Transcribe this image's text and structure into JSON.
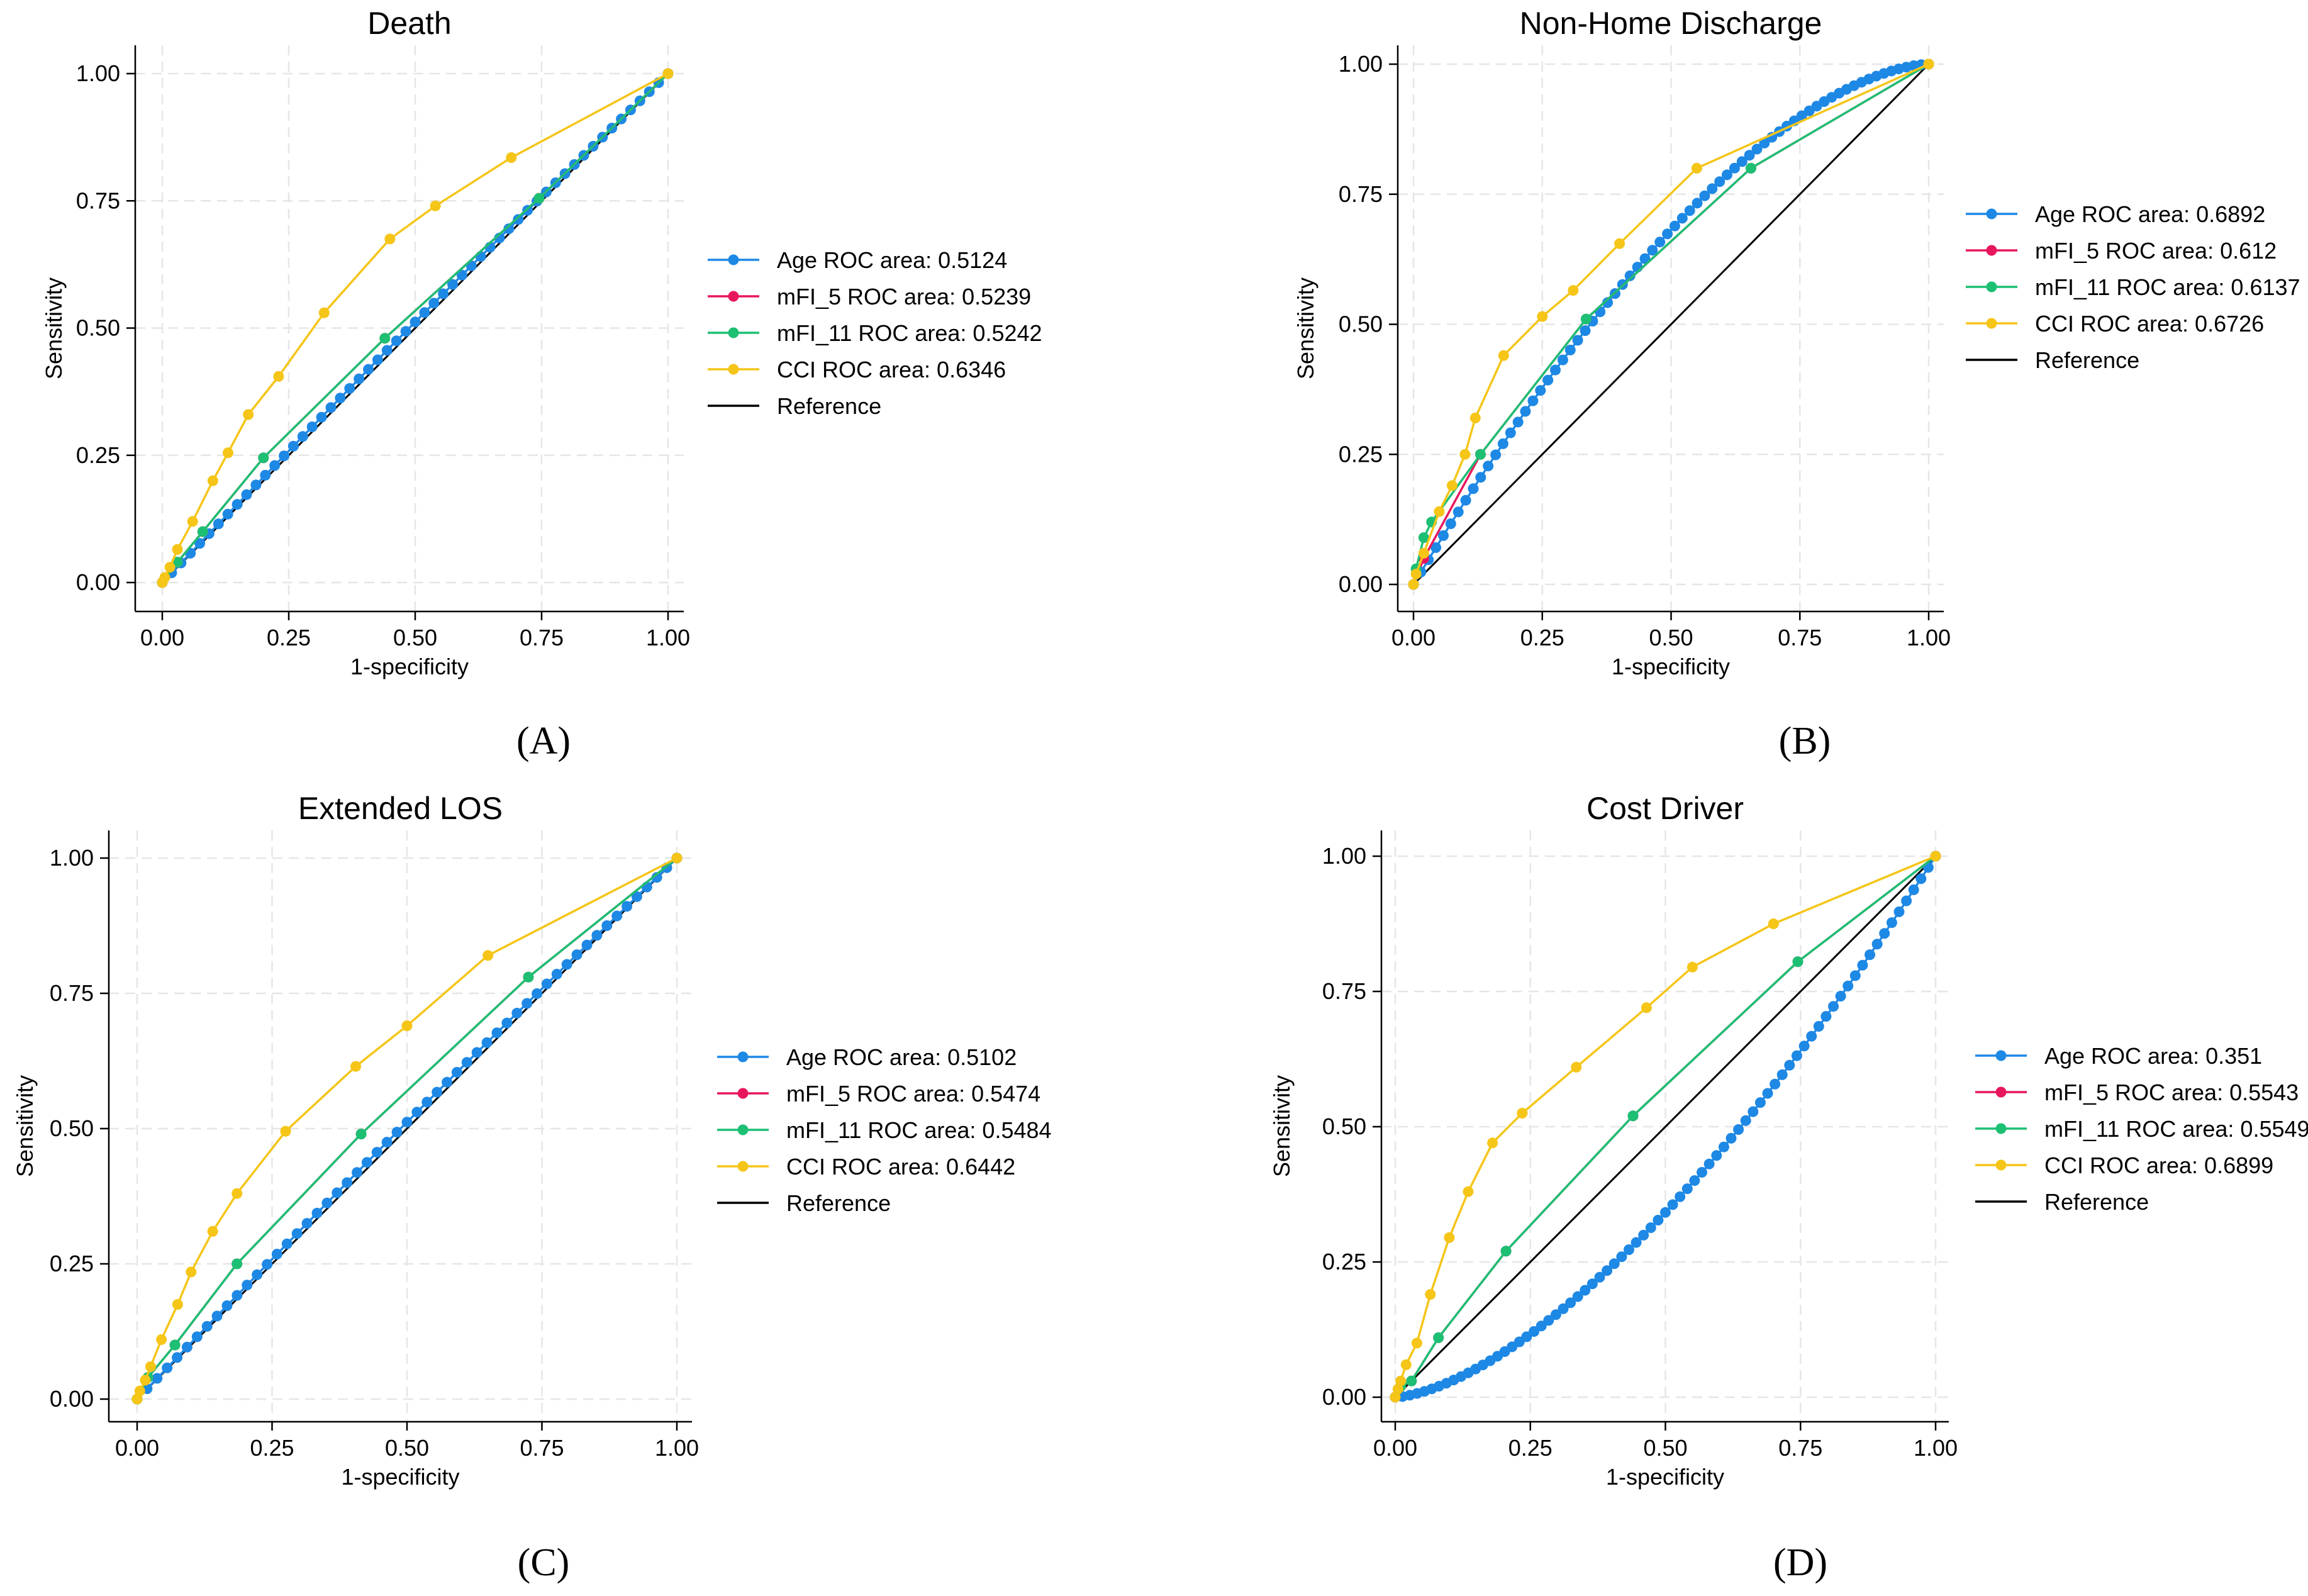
{
  "figure": {
    "panel_labels": [
      "(A)",
      "(B)",
      "(C)",
      "(D)"
    ]
  },
  "styles": {
    "colors": {
      "Age": "#1e88e5",
      "mFI_5": "#e8175d",
      "mFI_11": "#1dbf73",
      "CCI": "#f5c518",
      "Reference": "#000000",
      "grid": "#e6e6e6"
    }
  },
  "chart_data": [
    {
      "type": "line",
      "title": "Death",
      "xlabel": "1-specificity",
      "ylabel": "Sensitivity",
      "xlim": [
        0,
        1
      ],
      "ylim": [
        0,
        1
      ],
      "xticks": [
        "0.00",
        "0.25",
        "0.50",
        "0.75",
        "1.00"
      ],
      "yticks": [
        "0.00",
        "0.25",
        "0.50",
        "0.75",
        "1.00"
      ],
      "grid": true,
      "legend": "right",
      "legend_entries": [
        "Age ROC area: 0.5124",
        "mFI_5 ROC area: 0.5239",
        "mFI_11 ROC area: 0.5242",
        "CCI ROC area: 0.6346",
        "Reference"
      ],
      "series": [
        {
          "name": "Age",
          "curve": "diag",
          "bow": 0.012,
          "n": 55
        },
        {
          "name": "mFI_5",
          "points": [
            [
              0,
              0
            ],
            [
              0.03,
              0.04
            ],
            [
              0.08,
              0.1
            ],
            [
              0.2,
              0.245
            ],
            [
              0.44,
              0.48
            ],
            [
              0.745,
              0.755
            ],
            [
              1,
              1
            ]
          ]
        },
        {
          "name": "mFI_11",
          "points": [
            [
              0,
              0
            ],
            [
              0.03,
              0.04
            ],
            [
              0.08,
              0.1
            ],
            [
              0.2,
              0.245
            ],
            [
              0.44,
              0.48
            ],
            [
              0.745,
              0.755
            ],
            [
              1,
              1
            ]
          ]
        },
        {
          "name": "CCI",
          "points": [
            [
              0,
              0
            ],
            [
              0.005,
              0.01
            ],
            [
              0.015,
              0.03
            ],
            [
              0.03,
              0.065
            ],
            [
              0.06,
              0.12
            ],
            [
              0.1,
              0.2
            ],
            [
              0.13,
              0.255
            ],
            [
              0.17,
              0.33
            ],
            [
              0.23,
              0.405
            ],
            [
              0.32,
              0.53
            ],
            [
              0.45,
              0.675
            ],
            [
              0.54,
              0.74
            ],
            [
              0.69,
              0.835
            ],
            [
              1,
              1
            ]
          ]
        },
        {
          "name": "Reference",
          "points": [
            [
              0,
              0
            ],
            [
              1,
              1
            ]
          ]
        }
      ]
    },
    {
      "type": "line",
      "title": "Non-Home Discharge",
      "xlabel": "1-specificity",
      "ylabel": "Sensitivity",
      "xlim": [
        0,
        1
      ],
      "ylim": [
        0,
        1
      ],
      "xticks": [
        "0.00",
        "0.25",
        "0.50",
        "0.75",
        "1.00"
      ],
      "yticks": [
        "0.00",
        "0.25",
        "0.50",
        "0.75",
        "1.00"
      ],
      "grid": true,
      "legend": "right",
      "legend_entries": [
        "Age ROC area: 0.6892",
        "mFI_5 ROC area: 0.612",
        "mFI_11 ROC area: 0.6137",
        "CCI ROC area: 0.6726",
        "Reference"
      ],
      "series": [
        {
          "name": "Age",
          "curve": "concave",
          "k": 1.65,
          "n": 70
        },
        {
          "name": "mFI_5",
          "points": [
            [
              0,
              0
            ],
            [
              0.02,
              0.05
            ],
            [
              0.13,
              0.25
            ],
            [
              0.335,
              0.51
            ],
            [
              0.655,
              0.8
            ],
            [
              1,
              1
            ]
          ]
        },
        {
          "name": "mFI_11",
          "points": [
            [
              0,
              0
            ],
            [
              0.005,
              0.03
            ],
            [
              0.02,
              0.09
            ],
            [
              0.035,
              0.12
            ],
            [
              0.13,
              0.25
            ],
            [
              0.335,
              0.51
            ],
            [
              0.655,
              0.8
            ],
            [
              1,
              1
            ]
          ]
        },
        {
          "name": "CCI",
          "points": [
            [
              0,
              0
            ],
            [
              0.005,
              0.02
            ],
            [
              0.02,
              0.06
            ],
            [
              0.05,
              0.14
            ],
            [
              0.075,
              0.19
            ],
            [
              0.1,
              0.25
            ],
            [
              0.12,
              0.32
            ],
            [
              0.175,
              0.44
            ],
            [
              0.25,
              0.515
            ],
            [
              0.31,
              0.565
            ],
            [
              0.4,
              0.655
            ],
            [
              0.55,
              0.8
            ],
            [
              1,
              1
            ]
          ]
        },
        {
          "name": "Reference",
          "points": [
            [
              0,
              0
            ],
            [
              1,
              1
            ]
          ]
        }
      ]
    },
    {
      "type": "line",
      "title": "Extended LOS",
      "xlabel": "1-specificity",
      "ylabel": "Sensitivity",
      "xlim": [
        0,
        1
      ],
      "ylim": [
        0,
        1
      ],
      "xticks": [
        "0.00",
        "0.25",
        "0.50",
        "0.75",
        "1.00"
      ],
      "yticks": [
        "0.00",
        "0.25",
        "0.50",
        "0.75",
        "1.00"
      ],
      "grid": true,
      "legend": "right",
      "legend_entries": [
        "Age ROC area: 0.5102",
        "mFI_5 ROC area: 0.5474",
        "mFI_11 ROC area: 0.5484",
        "CCI ROC area: 0.6442",
        "Reference"
      ],
      "series": [
        {
          "name": "Age",
          "curve": "diag",
          "bow": 0.012,
          "n": 55
        },
        {
          "name": "mFI_5",
          "points": [
            [
              0,
              0
            ],
            [
              0.02,
              0.04
            ],
            [
              0.07,
              0.1
            ],
            [
              0.185,
              0.25
            ],
            [
              0.415,
              0.49
            ],
            [
              0.725,
              0.78
            ],
            [
              1,
              1
            ]
          ]
        },
        {
          "name": "mFI_11",
          "points": [
            [
              0,
              0
            ],
            [
              0.02,
              0.04
            ],
            [
              0.07,
              0.1
            ],
            [
              0.185,
              0.25
            ],
            [
              0.415,
              0.49
            ],
            [
              0.725,
              0.78
            ],
            [
              1,
              1
            ]
          ]
        },
        {
          "name": "CCI",
          "points": [
            [
              0,
              0
            ],
            [
              0.005,
              0.015
            ],
            [
              0.015,
              0.035
            ],
            [
              0.025,
              0.06
            ],
            [
              0.045,
              0.11
            ],
            [
              0.075,
              0.175
            ],
            [
              0.1,
              0.235
            ],
            [
              0.14,
              0.31
            ],
            [
              0.185,
              0.38
            ],
            [
              0.275,
              0.495
            ],
            [
              0.405,
              0.615
            ],
            [
              0.5,
              0.69
            ],
            [
              0.65,
              0.82
            ],
            [
              1,
              1
            ]
          ]
        },
        {
          "name": "Reference",
          "points": [
            [
              0,
              0
            ],
            [
              1,
              1
            ]
          ]
        }
      ]
    },
    {
      "type": "line",
      "title": "Cost Driver",
      "xlabel": "1-specificity",
      "ylabel": "Sensitivity",
      "xlim": [
        0,
        1
      ],
      "ylim": [
        0,
        1
      ],
      "xticks": [
        "0.00",
        "0.25",
        "0.50",
        "0.75",
        "1.00"
      ],
      "yticks": [
        "0.00",
        "0.25",
        "0.50",
        "0.75",
        "1.00"
      ],
      "grid": true,
      "legend": "right",
      "legend_entries": [
        "Age ROC area: 0.351",
        "mFI_5 ROC area: 0.5543",
        "mFI_11 ROC area: 0.5549",
        "CCI ROC area: 0.6899",
        "Reference"
      ],
      "series": [
        {
          "name": "Age",
          "curve": "convex",
          "k": 1.55,
          "n": 75
        },
        {
          "name": "mFI_5",
          "points": [
            [
              0,
              0
            ],
            [
              0.01,
              0.02
            ],
            [
              0.03,
              0.03
            ],
            [
              0.08,
              0.11
            ],
            [
              0.205,
              0.27
            ],
            [
              0.44,
              0.52
            ],
            [
              0.745,
              0.805
            ],
            [
              1,
              1
            ]
          ]
        },
        {
          "name": "mFI_11",
          "points": [
            [
              0,
              0
            ],
            [
              0.01,
              0.02
            ],
            [
              0.03,
              0.03
            ],
            [
              0.08,
              0.11
            ],
            [
              0.205,
              0.27
            ],
            [
              0.44,
              0.52
            ],
            [
              0.745,
              0.805
            ],
            [
              1,
              1
            ]
          ]
        },
        {
          "name": "CCI",
          "points": [
            [
              0,
              0
            ],
            [
              0.005,
              0.015
            ],
            [
              0.01,
              0.03
            ],
            [
              0.02,
              0.06
            ],
            [
              0.04,
              0.1
            ],
            [
              0.065,
              0.19
            ],
            [
              0.1,
              0.295
            ],
            [
              0.135,
              0.38
            ],
            [
              0.18,
              0.47
            ],
            [
              0.235,
              0.525
            ],
            [
              0.335,
              0.61
            ],
            [
              0.465,
              0.72
            ],
            [
              0.55,
              0.795
            ],
            [
              0.7,
              0.875
            ],
            [
              1,
              1
            ]
          ]
        },
        {
          "name": "Reference",
          "points": [
            [
              0,
              0
            ],
            [
              1,
              1
            ]
          ]
        }
      ]
    }
  ]
}
